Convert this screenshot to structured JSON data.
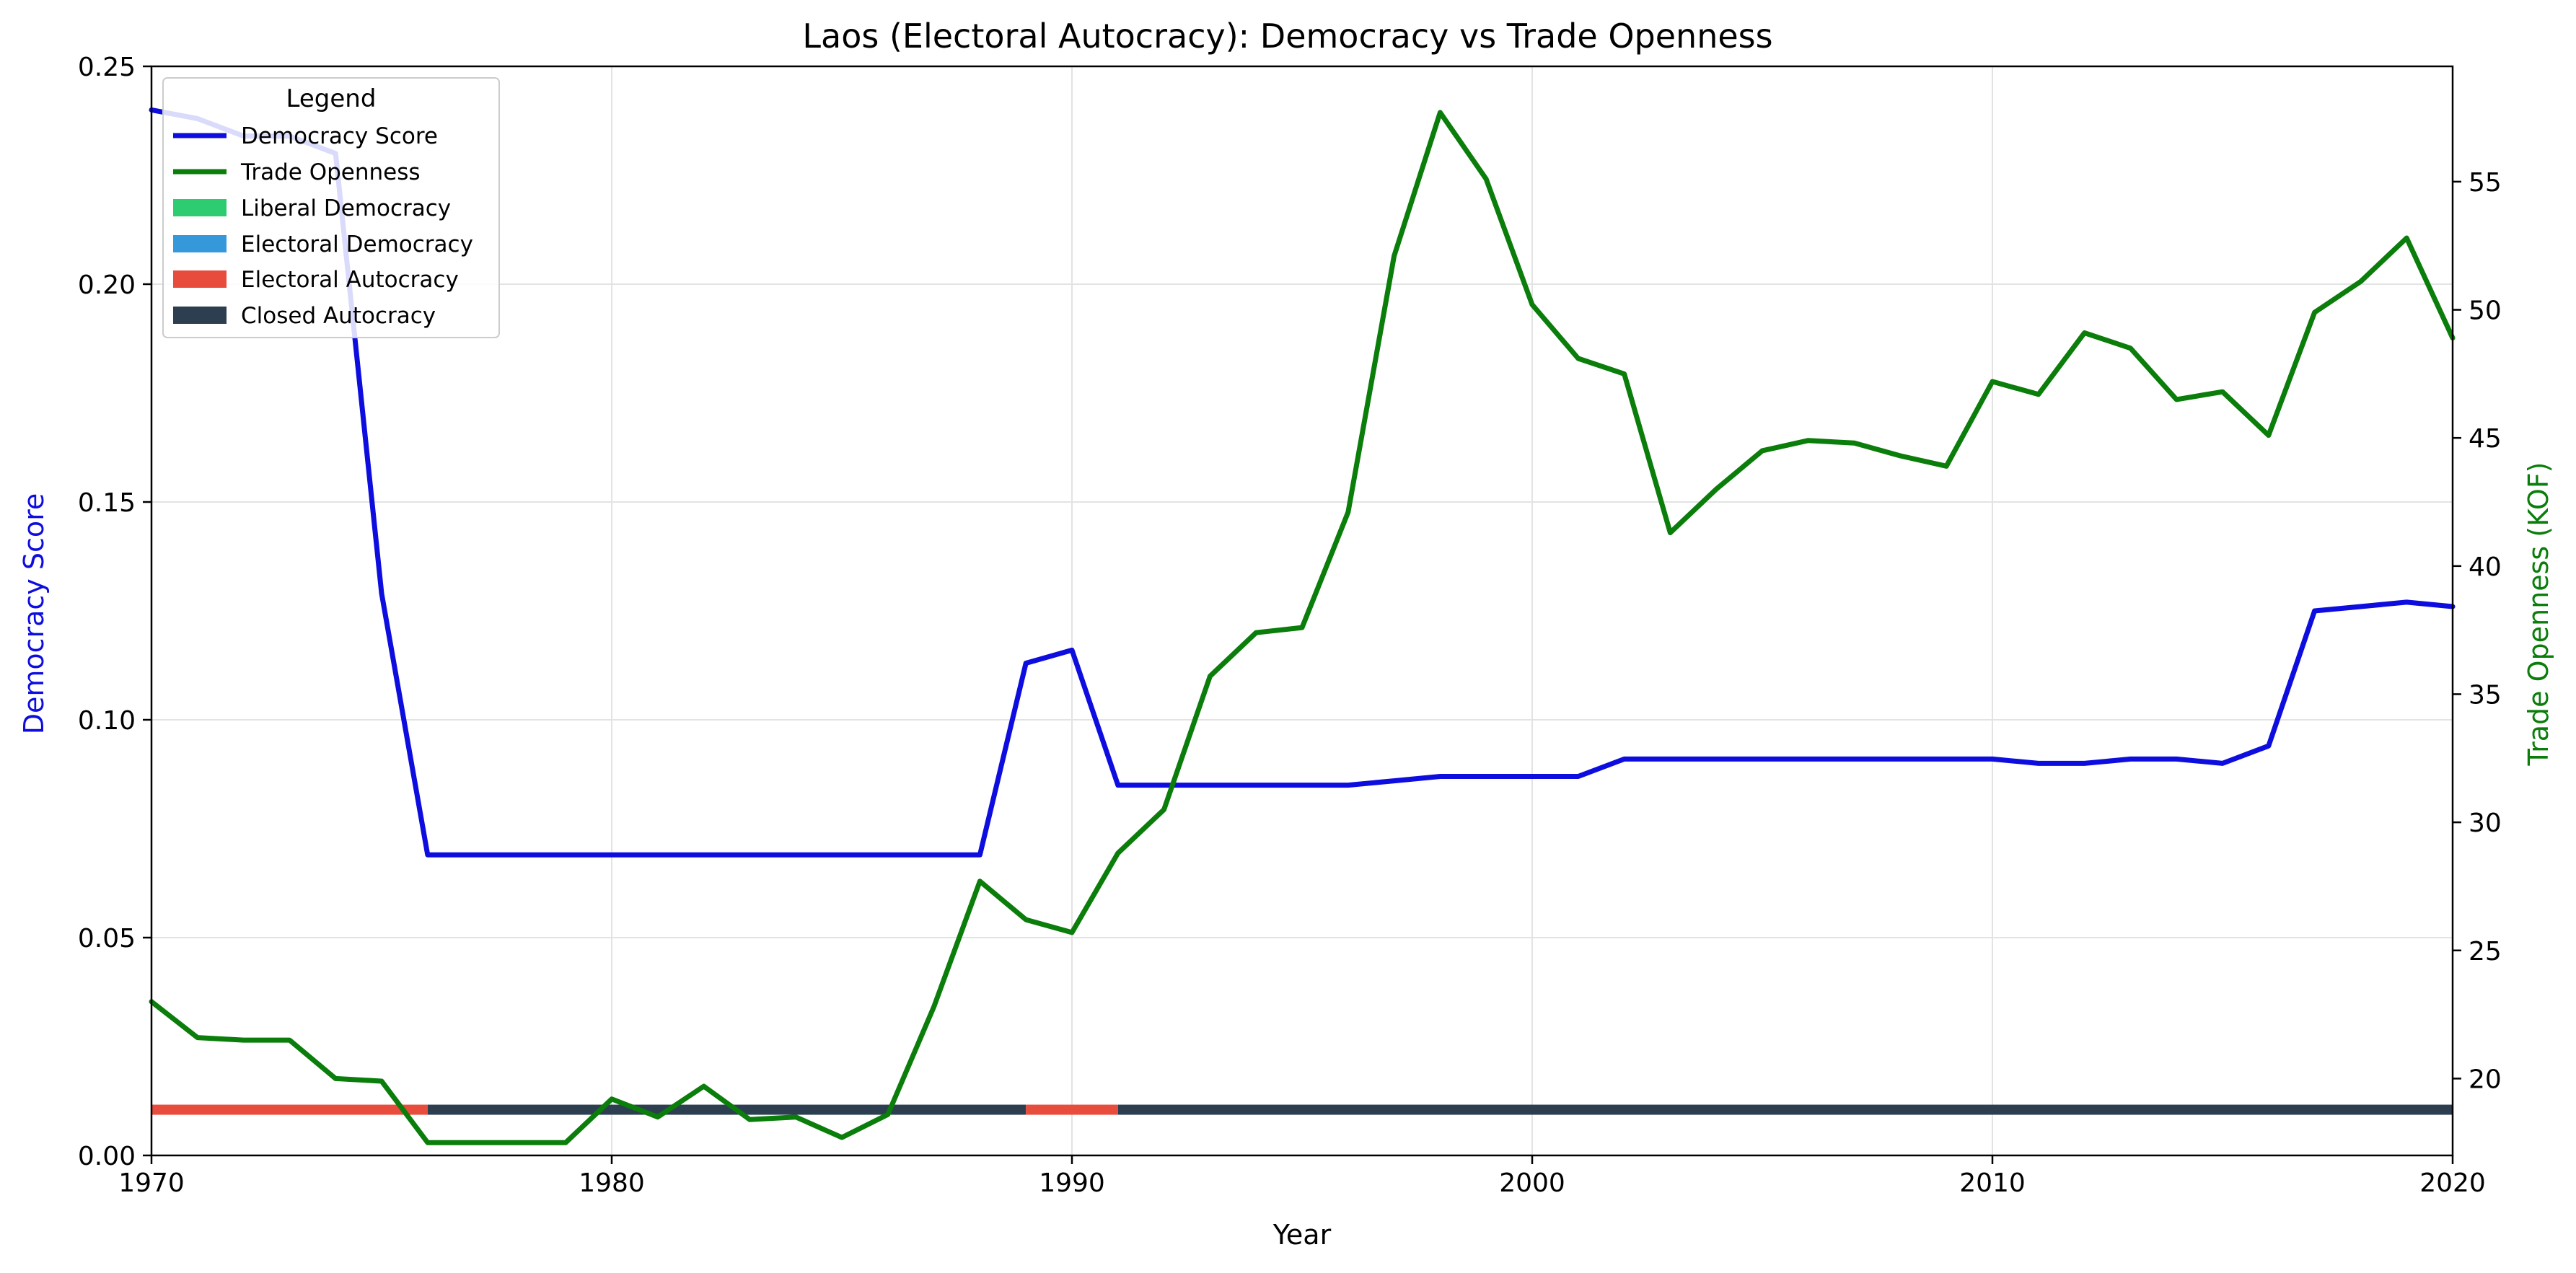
{
  "chart_data": {
    "type": "line",
    "title": "Laos (Electoral Autocracy): Democracy vs Trade Openness",
    "xlabel": "Year",
    "ylabel_left": "Democracy Score",
    "ylabel_right": "Trade Openness (KOF)",
    "xlim": [
      1970,
      2020
    ],
    "ylim_left": [
      0,
      0.25
    ],
    "ylim_right": [
      17,
      59.5
    ],
    "x_ticks": [
      1970,
      1980,
      1990,
      2000,
      2010,
      2020
    ],
    "y_ticks_left": [
      "0.00",
      "0.05",
      "0.10",
      "0.15",
      "0.20",
      "0.25"
    ],
    "y_ticks_right": [
      20,
      25,
      30,
      35,
      40,
      45,
      50,
      55
    ],
    "grid": true,
    "legend": {
      "title": "Legend",
      "placement": "top-left",
      "entries": [
        "Democracy Score",
        "Trade Openness",
        "Liberal Democracy",
        "Electoral Democracy",
        "Electoral Autocracy",
        "Closed Autocracy"
      ]
    },
    "colors": {
      "democracy": "#0d0de0",
      "trade": "#0a7d0a",
      "liberal_democracy": "#2ecc71",
      "electoral_democracy": "#3498db",
      "electoral_autocracy": "#e74c3c",
      "closed_autocracy": "#2c3e50",
      "grid": "#e3e3e3"
    },
    "x": [
      1970,
      1971,
      1972,
      1973,
      1974,
      1975,
      1976,
      1977,
      1978,
      1979,
      1980,
      1981,
      1982,
      1983,
      1984,
      1985,
      1986,
      1987,
      1988,
      1989,
      1990,
      1991,
      1992,
      1993,
      1994,
      1995,
      1996,
      1997,
      1998,
      1999,
      2000,
      2001,
      2002,
      2003,
      2004,
      2005,
      2006,
      2007,
      2008,
      2009,
      2010,
      2011,
      2012,
      2013,
      2014,
      2015,
      2016,
      2017,
      2018,
      2019,
      2020
    ],
    "series": [
      {
        "name": "Democracy Score",
        "axis": "left",
        "values": [
          0.24,
          0.238,
          0.234,
          0.234,
          0.23,
          0.129,
          0.069,
          0.069,
          0.069,
          0.069,
          0.069,
          0.069,
          0.069,
          0.069,
          0.069,
          0.069,
          0.069,
          0.069,
          0.069,
          0.113,
          0.116,
          0.085,
          0.085,
          0.085,
          0.085,
          0.085,
          0.085,
          0.086,
          0.087,
          0.087,
          0.087,
          0.087,
          0.091,
          0.091,
          0.091,
          0.091,
          0.091,
          0.091,
          0.091,
          0.091,
          0.091,
          0.09,
          0.09,
          0.091,
          0.091,
          0.09,
          0.094,
          0.125,
          0.126,
          0.127,
          0.126
        ]
      },
      {
        "name": "Trade Openness",
        "axis": "right",
        "values": [
          23.0,
          21.6,
          21.5,
          21.5,
          20.0,
          19.9,
          17.5,
          17.5,
          17.5,
          17.5,
          19.2,
          18.5,
          19.7,
          18.4,
          18.5,
          17.7,
          18.6,
          22.8,
          27.7,
          26.2,
          25.7,
          28.8,
          30.5,
          35.7,
          37.4,
          37.6,
          42.1,
          52.1,
          57.7,
          55.1,
          50.2,
          48.1,
          47.5,
          41.3,
          43.0,
          44.5,
          44.9,
          44.8,
          44.3,
          43.9,
          47.2,
          46.7,
          49.1,
          48.5,
          46.5,
          46.8,
          45.1,
          49.9,
          51.1,
          52.8,
          48.9
        ]
      }
    ],
    "regime_bands": [
      {
        "regime": "Electoral Autocracy",
        "start": 1970,
        "end": 1976
      },
      {
        "regime": "Closed Autocracy",
        "start": 1976,
        "end": 1989
      },
      {
        "regime": "Electoral Autocracy",
        "start": 1989,
        "end": 1991
      },
      {
        "regime": "Closed Autocracy",
        "start": 1991,
        "end": 2020
      }
    ]
  }
}
